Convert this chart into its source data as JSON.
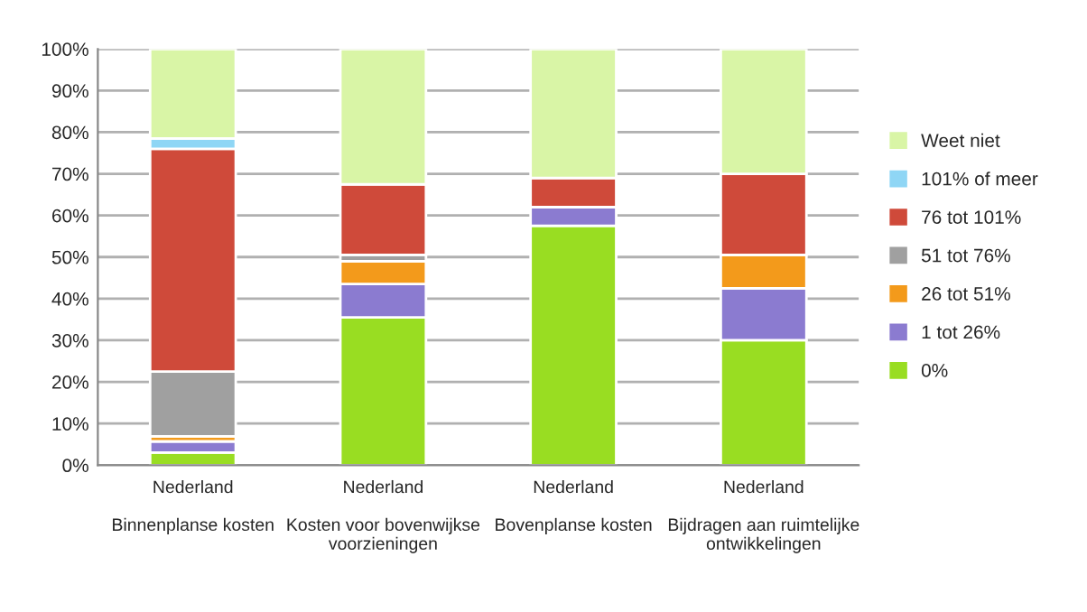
{
  "chart_data": {
    "type": "bar",
    "stacked": true,
    "categories": [
      "Nederland\n\nBinnenplanse kosten",
      "Nederland\n\nKosten voor bovenwijkse\nvoorzieningen",
      "Nederland\n\nBovenplanse kosten",
      "Nederland\n\nBijdragen aan ruimtelijke\nontwikkelingen"
    ],
    "series": [
      {
        "name": "0%",
        "color": "#99dd22",
        "values": [
          3,
          35.5,
          57.5,
          30
        ]
      },
      {
        "name": "1 tot 26%",
        "color": "#8b7bd0",
        "values": [
          2.7,
          8,
          4.5,
          12.5
        ]
      },
      {
        "name": "26 tot 51%",
        "color": "#f39a1b",
        "values": [
          1.2,
          5.5,
          0,
          8
        ]
      },
      {
        "name": "51 tot 76%",
        "color": "#a0a0a0",
        "values": [
          15.6,
          1.5,
          0,
          0
        ]
      },
      {
        "name": "76 tot 101%",
        "color": "#cf4a3a",
        "values": [
          53.5,
          17,
          7,
          19.5
        ]
      },
      {
        "name": "101% of meer",
        "color": "#8fd6f5",
        "values": [
          2.5,
          0,
          0,
          0
        ]
      },
      {
        "name": "Weet niet",
        "color": "#d9f5a6",
        "values": [
          21.5,
          32.5,
          31,
          30
        ]
      }
    ],
    "ylim": [
      0,
      100
    ],
    "yticks": [
      {
        "value": 0,
        "label": "0%"
      },
      {
        "value": 10,
        "label": "10%"
      },
      {
        "value": 20,
        "label": "20%"
      },
      {
        "value": 30,
        "label": "30%"
      },
      {
        "value": 40,
        "label": "40%"
      },
      {
        "value": 50,
        "label": "50%"
      },
      {
        "value": 60,
        "label": "60%"
      },
      {
        "value": 70,
        "label": "70%"
      },
      {
        "value": 80,
        "label": "80%"
      },
      {
        "value": 90,
        "label": "90%"
      },
      {
        "value": 100,
        "label": "100%"
      }
    ],
    "grid": "y",
    "legend": "right"
  }
}
